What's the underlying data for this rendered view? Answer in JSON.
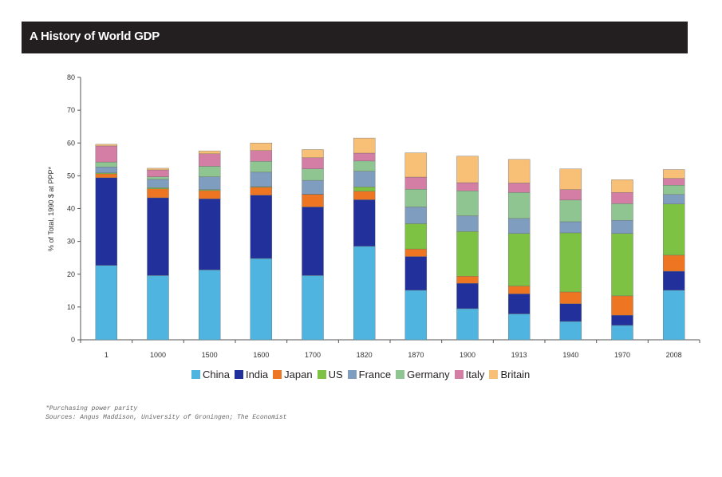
{
  "header": {
    "title": "A History of World GDP"
  },
  "footnotes": {
    "note": "*Purchasing power parity",
    "sources": "Sources: Angus Maddison, University of Groningen; The Economist"
  },
  "chart_data": {
    "type": "bar",
    "stacked": true,
    "title": "A History of World GDP",
    "xlabel": "",
    "ylabel": "% of Total, 1990 $ at PPP*",
    "ylim": [
      0,
      80
    ],
    "yticks": [
      0,
      10,
      20,
      30,
      40,
      50,
      60,
      70,
      80
    ],
    "grid": false,
    "legend_position": "bottom",
    "categories": [
      "1",
      "1000",
      "1500",
      "1600",
      "1700",
      "1820",
      "1870",
      "1900",
      "1913",
      "1940",
      "1970",
      "2008"
    ],
    "series": [
      {
        "name": "China",
        "color": "#4fb4e0",
        "values": [
          22.7,
          19.6,
          21.3,
          24.8,
          19.6,
          28.5,
          15.1,
          9.5,
          7.9,
          5.6,
          4.4,
          15.1
        ]
      },
      {
        "name": "India",
        "color": "#21309a",
        "values": [
          26.7,
          23.7,
          21.7,
          19.3,
          20.9,
          14.2,
          10.3,
          7.7,
          6.1,
          5.4,
          3.1,
          5.8
        ]
      },
      {
        "name": "Japan",
        "color": "#ee7623",
        "values": [
          1.2,
          2.7,
          2.5,
          2.4,
          3.8,
          2.6,
          2.3,
          2.2,
          2.4,
          3.6,
          5.9,
          4.9
        ]
      },
      {
        "name": "US",
        "color": "#7dc242",
        "values": [
          0.3,
          0.4,
          0.3,
          0.2,
          0.1,
          1.3,
          7.7,
          13.6,
          16.0,
          18.0,
          19.0,
          15.6
        ]
      },
      {
        "name": "France",
        "color": "#7f9dbf",
        "values": [
          1.8,
          2.5,
          3.9,
          4.4,
          4.2,
          4.8,
          5.1,
          4.8,
          4.6,
          3.4,
          4.0,
          2.9
        ]
      },
      {
        "name": "Germany",
        "color": "#8fc590",
        "values": [
          1.5,
          0.8,
          3.2,
          3.3,
          3.5,
          3.1,
          5.4,
          7.6,
          7.9,
          6.6,
          5.1,
          2.8
        ]
      },
      {
        "name": "Italy",
        "color": "#d57ea5",
        "values": [
          4.9,
          2.1,
          3.8,
          3.3,
          3.4,
          2.4,
          3.7,
          2.5,
          2.9,
          3.2,
          3.4,
          2.1
        ]
      },
      {
        "name": "Britain",
        "color": "#f8c077",
        "values": [
          0.5,
          0.5,
          0.9,
          2.3,
          2.5,
          4.6,
          7.4,
          8.1,
          7.2,
          6.3,
          3.9,
          2.7
        ]
      }
    ]
  }
}
